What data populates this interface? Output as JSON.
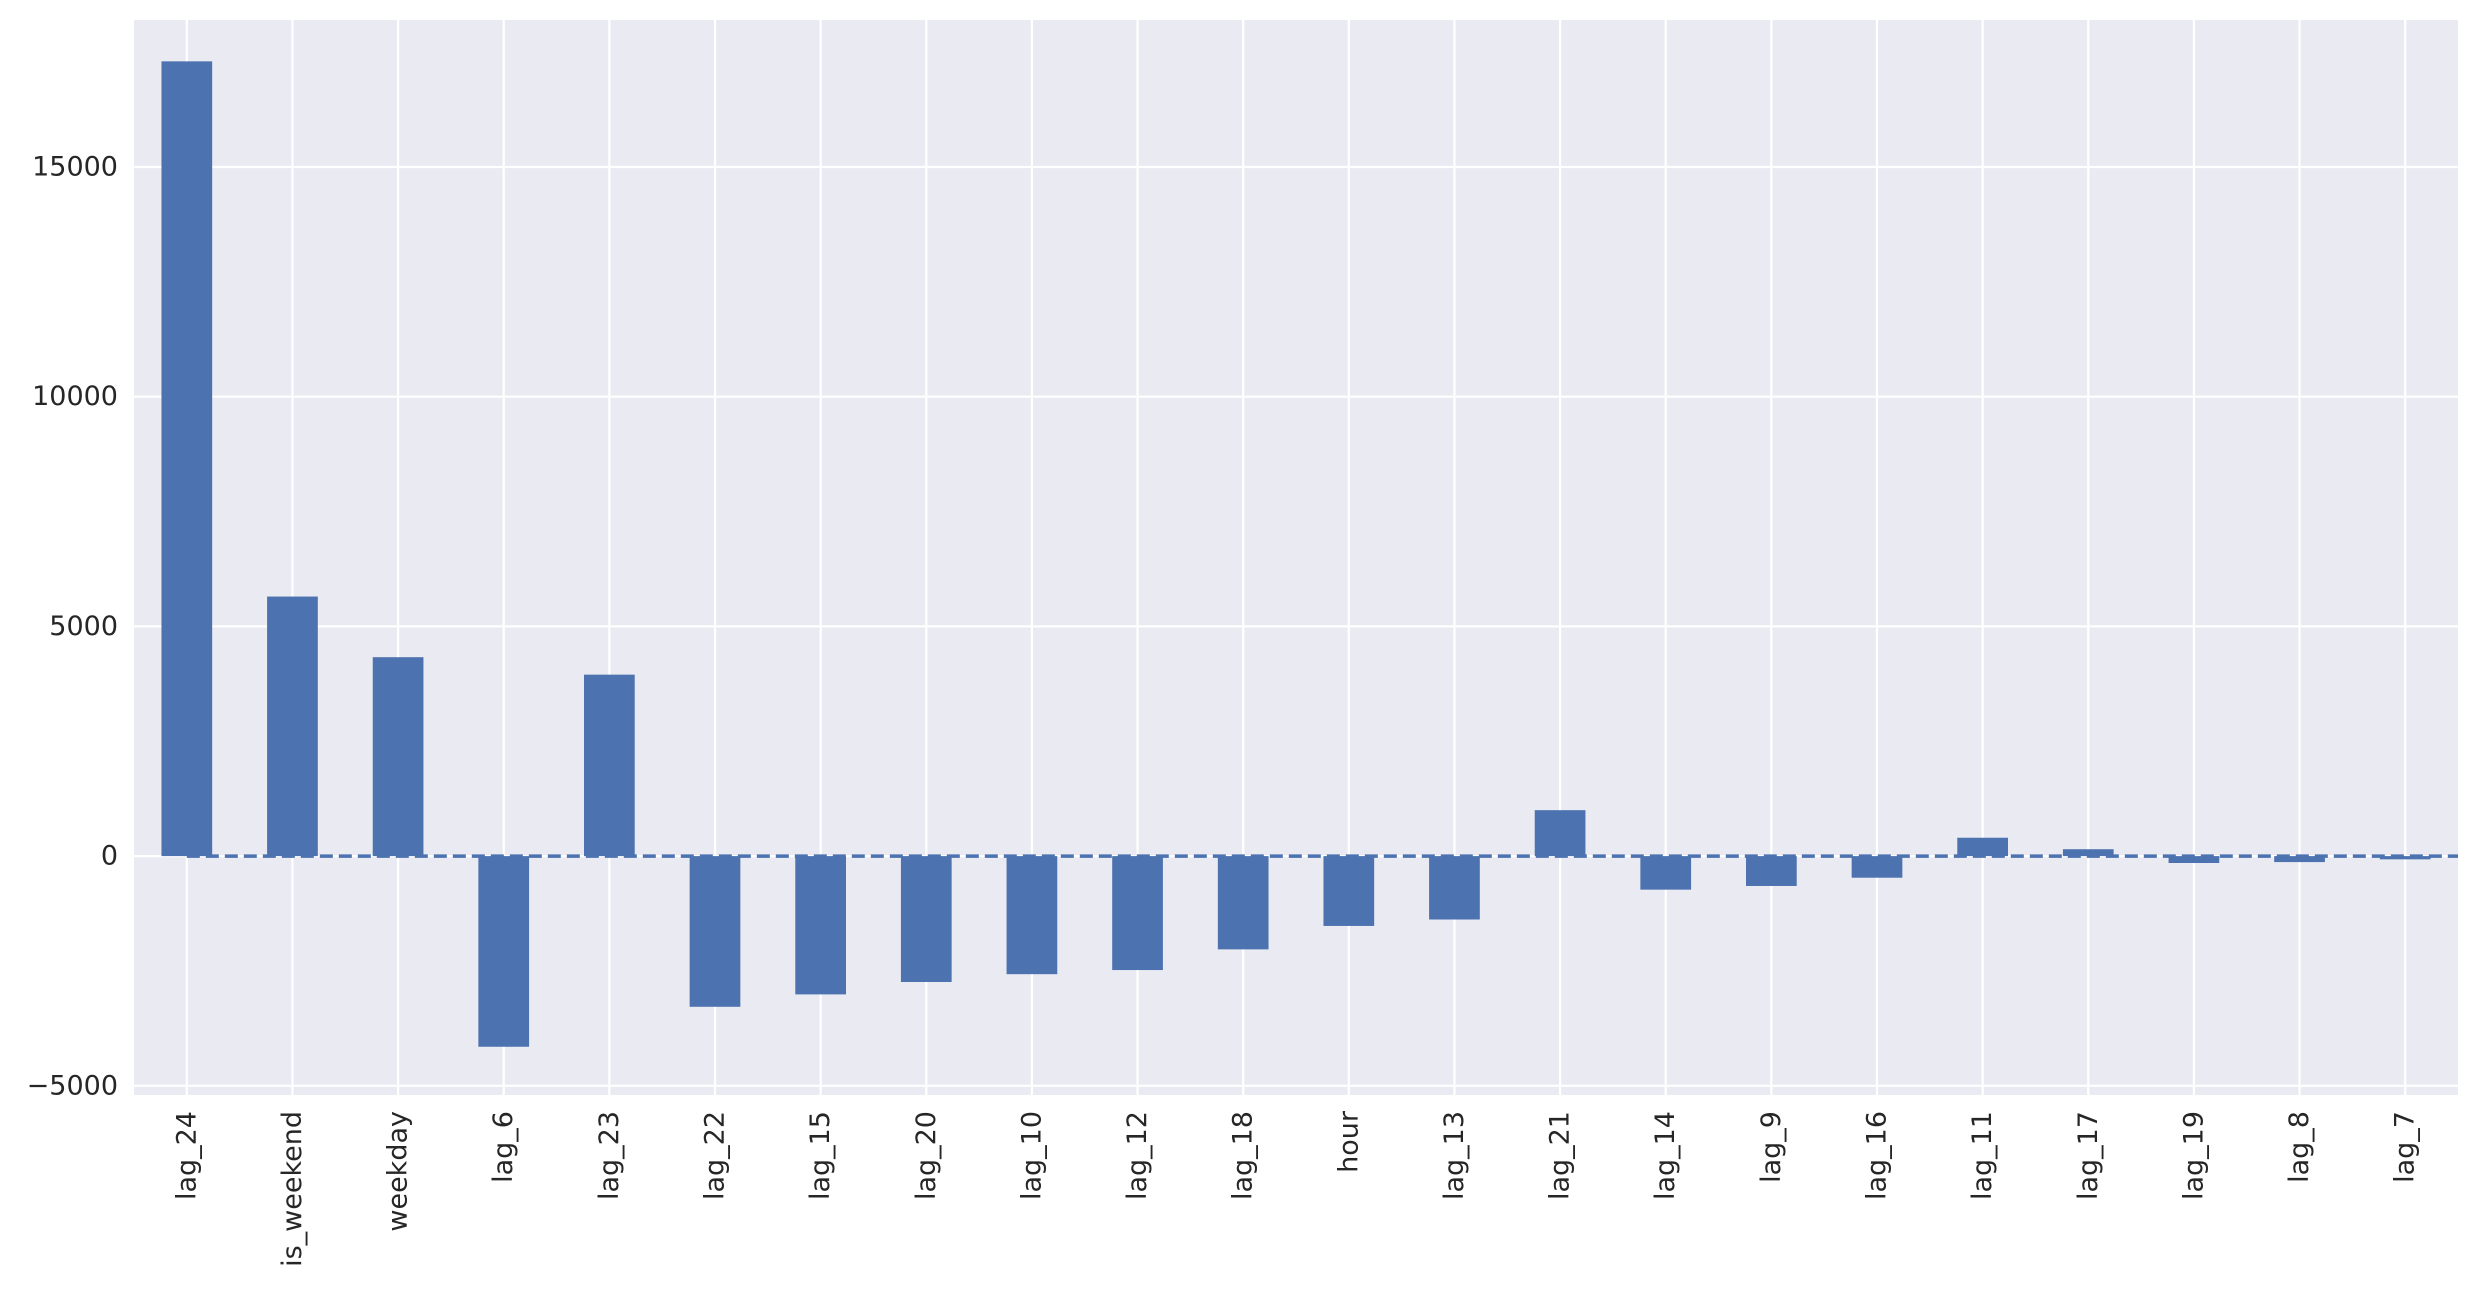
{
  "chart_data": {
    "type": "bar",
    "title": "",
    "xlabel": "",
    "ylabel": "",
    "categories": [
      "lag_24",
      "is_weekend",
      "weekday",
      "lag_6",
      "lag_23",
      "lag_22",
      "lag_15",
      "lag_20",
      "lag_10",
      "lag_12",
      "lag_18",
      "hour",
      "lag_13",
      "lag_21",
      "lag_14",
      "lag_9",
      "lag_16",
      "lag_11",
      "lag_17",
      "lag_19",
      "lag_8",
      "lag_7"
    ],
    "values": [
      17300,
      5650,
      4330,
      -4150,
      3950,
      -3280,
      -3010,
      -2740,
      -2570,
      -2480,
      -2030,
      -1520,
      -1380,
      1000,
      -730,
      -650,
      -470,
      400,
      150,
      -150,
      -130,
      -70
    ],
    "ylim": [
      -5200,
      18200
    ],
    "yticks": [
      -5000,
      0,
      5000,
      10000,
      15000
    ],
    "ytick_labels": [
      "−5000",
      "0",
      "5000",
      "10000",
      "15000"
    ],
    "grid": true,
    "reference_line": {
      "value": 0,
      "style": "dashed"
    },
    "colors": {
      "bar": "#4c72b0",
      "background": "#eaeaf2",
      "grid": "#ffffff",
      "zero_line": "#4c72b0"
    }
  }
}
